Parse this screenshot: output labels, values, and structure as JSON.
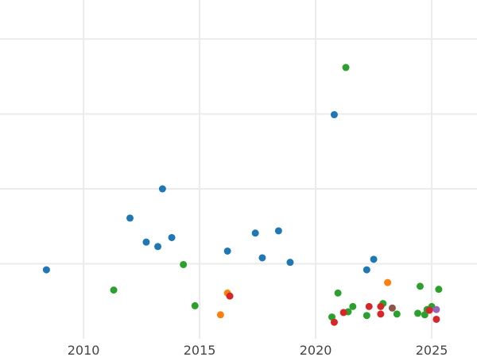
{
  "chart_data": {
    "type": "scatter",
    "title": "",
    "xlabel": "",
    "ylabel": "",
    "xlim": [
      2006.4,
      2026.95
    ],
    "ylim": [
      0,
      4.52
    ],
    "xticks": [
      2010,
      2015,
      2020,
      2025
    ],
    "xtick_labels": [
      "2010",
      "2015",
      "2020",
      "2025"
    ],
    "ygrid": [
      1,
      2,
      3,
      4
    ],
    "grid": true,
    "legend": "none",
    "series": [
      {
        "color": "#1f77b4",
        "points": [
          [
            2008.4,
            0.92
          ],
          [
            2012.0,
            1.61
          ],
          [
            2012.7,
            1.29
          ],
          [
            2013.2,
            1.23
          ],
          [
            2013.4,
            2.0
          ],
          [
            2013.8,
            1.35
          ],
          [
            2016.2,
            1.17
          ],
          [
            2017.4,
            1.41
          ],
          [
            2017.7,
            1.08
          ],
          [
            2018.4,
            1.44
          ],
          [
            2018.9,
            1.02
          ],
          [
            2020.8,
            2.99
          ],
          [
            2022.2,
            0.92
          ],
          [
            2022.5,
            1.06
          ]
        ]
      },
      {
        "color": "#2ca02c",
        "points": [
          [
            2011.3,
            0.65
          ],
          [
            2014.3,
            0.99
          ],
          [
            2014.8,
            0.44
          ],
          [
            2021.3,
            3.62
          ],
          [
            2020.96,
            0.61
          ],
          [
            2024.5,
            0.7
          ],
          [
            2025.3,
            0.66
          ],
          [
            2020.7,
            0.29
          ],
          [
            2021.4,
            0.36
          ],
          [
            2021.6,
            0.43
          ],
          [
            2022.2,
            0.31
          ],
          [
            2022.9,
            0.47
          ],
          [
            2023.5,
            0.33
          ],
          [
            2024.4,
            0.34
          ],
          [
            2024.7,
            0.32
          ],
          [
            2024.8,
            0.39
          ],
          [
            2025.0,
            0.43
          ]
        ]
      },
      {
        "color": "#ff7f0e",
        "points": [
          [
            2015.9,
            0.32
          ],
          [
            2016.2,
            0.61
          ],
          [
            2023.1,
            0.75
          ]
        ]
      },
      {
        "color": "#d62728",
        "points": [
          [
            2016.3,
            0.57
          ],
          [
            2020.8,
            0.22
          ],
          [
            2021.2,
            0.35
          ],
          [
            2022.3,
            0.43
          ],
          [
            2022.8,
            0.43
          ],
          [
            2022.8,
            0.33
          ],
          [
            2024.9,
            0.38
          ],
          [
            2025.2,
            0.26
          ]
        ]
      },
      {
        "color": "#8c564b",
        "points": [
          [
            2023.3,
            0.41
          ]
        ]
      },
      {
        "color": "#9467bd",
        "points": [
          [
            2025.2,
            0.39
          ]
        ]
      }
    ]
  }
}
